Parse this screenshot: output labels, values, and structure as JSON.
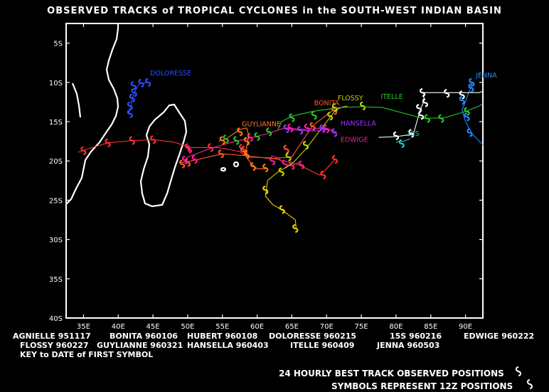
{
  "title": "OBSERVED TRACKS of TROPICAL CYCLONES in the SOUTH-WEST INDIAN BASIN",
  "legend": [
    {
      "name": "AGNIELLE",
      "date": "951117"
    },
    {
      "name": "BONITA",
      "date": "960106"
    },
    {
      "name": "HUBERT",
      "date": "960108"
    },
    {
      "name": "DOLORESSE",
      "date": "960215"
    },
    {
      "name": "15S",
      "date": "960216"
    },
    {
      "name": "EDWIGE",
      "date": "960222"
    },
    {
      "name": "FLOSSY",
      "date": "960227"
    },
    {
      "name": "GUYLIANNE",
      "date": "960321"
    },
    {
      "name": "HANSELLA",
      "date": "960403"
    },
    {
      "name": "ITELLE",
      "date": "960409"
    },
    {
      "name": "JENNA",
      "date": "960503"
    }
  ],
  "key_text": "KEY to DATE of FIRST SYMBOL",
  "footer": {
    "line1": "24 HOURLY BEST TRACK OBSERVED POSITIONS",
    "line2": "SYMBOLS REPRESENT 12Z POSITIONS",
    "symbol": "cyclone-icon"
  },
  "colors": {
    "background": "#000000",
    "frame": "#ffffff",
    "land": "#ffffff"
  },
  "chart_data": {
    "type": "map-tracks",
    "xlabel": "",
    "ylabel": "",
    "xlim": [
      32.5,
      92.5
    ],
    "ylim": [
      -40,
      -2.5
    ],
    "xticks": [
      {
        "value": 35,
        "label": "35E"
      },
      {
        "value": 40,
        "label": "40E"
      },
      {
        "value": 45,
        "label": "45E"
      },
      {
        "value": 50,
        "label": "50E"
      },
      {
        "value": 55,
        "label": "55E"
      },
      {
        "value": 60,
        "label": "60E"
      },
      {
        "value": 65,
        "label": "65E"
      },
      {
        "value": 70,
        "label": "70E"
      },
      {
        "value": 75,
        "label": "75E"
      },
      {
        "value": 80,
        "label": "80E"
      },
      {
        "value": 85,
        "label": "85E"
      },
      {
        "value": 90,
        "label": "90E"
      }
    ],
    "yticks": [
      {
        "value": -5,
        "label": "5S"
      },
      {
        "value": -10,
        "label": "10S"
      },
      {
        "value": -15,
        "label": "15S"
      },
      {
        "value": -20,
        "label": "20S"
      },
      {
        "value": -25,
        "label": "25S"
      },
      {
        "value": -30,
        "label": "30S"
      },
      {
        "value": -35,
        "label": "35S"
      },
      {
        "value": -40,
        "label": "40S"
      }
    ],
    "series": [
      {
        "name": "AGNIELLE",
        "color": "#ff3030",
        "points": [
          [
            34.2,
            -18.9
          ],
          [
            35.5,
            -18.5
          ],
          [
            38.5,
            -17.7
          ],
          [
            42,
            -17.4
          ],
          [
            45.2,
            -17.3
          ],
          [
            48,
            -17.6
          ],
          [
            50.5,
            -18.3
          ],
          [
            54.5,
            -18.3
          ],
          [
            57.5,
            -18.8
          ],
          [
            58.5,
            -19.5
          ],
          [
            62,
            -19.6
          ],
          [
            66,
            -20.5
          ],
          [
            69,
            -21.8
          ],
          [
            70,
            -21
          ],
          [
            71.2,
            -19.8
          ]
        ],
        "markers": [
          [
            35,
            -18.7
          ],
          [
            38.5,
            -17.7
          ],
          [
            42,
            -17.4
          ],
          [
            45,
            -17.3
          ],
          [
            50,
            -18.3
          ],
          [
            53.3,
            -18.3
          ],
          [
            57.8,
            -18.4
          ],
          [
            58.2,
            -18.6
          ],
          [
            69.5,
            -21.8
          ],
          [
            71.2,
            -19.8
          ]
        ]
      },
      {
        "name": "BONITA",
        "color": "#ff5a28",
        "points": [
          [
            49,
            -20.2
          ],
          [
            50,
            -20.1
          ],
          [
            55,
            -19.1
          ],
          [
            58,
            -19.3
          ],
          [
            62,
            -19.7
          ],
          [
            65,
            -19.5
          ],
          [
            68,
            -15.5
          ],
          [
            71,
            -13.5
          ],
          [
            72,
            -13.3
          ]
        ],
        "markers": [
          [
            49.2,
            -20.4
          ],
          [
            50,
            -20.2
          ],
          [
            54.8,
            -19.1
          ],
          [
            58,
            -18.8
          ],
          [
            64.2,
            -18.5
          ],
          [
            68,
            -15.6
          ],
          [
            71.1,
            -13.6
          ]
        ]
      },
      {
        "name": "HUBERT",
        "color": "#ff1e96",
        "points": [
          [
            49.5,
            -20
          ],
          [
            50,
            -19.5
          ],
          [
            53,
            -18.5
          ],
          [
            56,
            -17.7
          ],
          [
            58.5,
            -17.2
          ],
          [
            61.5,
            -16.5
          ],
          [
            64,
            -15.8
          ],
          [
            67,
            -16
          ],
          [
            69.5,
            -15.8
          ],
          [
            71.5,
            -16.3
          ]
        ],
        "markers": [
          [
            49.6,
            -19.9
          ],
          [
            50.2,
            -18.5
          ],
          [
            51,
            -19.8
          ],
          [
            59,
            -17
          ],
          [
            64.8,
            -15.8
          ],
          [
            67.2,
            -15.8
          ],
          [
            70,
            -15.9
          ]
        ]
      },
      {
        "name": "DOLORESSE",
        "color": "#2850ff",
        "points": [
          [
            41.5,
            -14
          ],
          [
            41.8,
            -13
          ],
          [
            42,
            -12
          ],
          [
            42.5,
            -11
          ],
          [
            43,
            -10.2
          ],
          [
            44.2,
            -10
          ]
        ],
        "markers": [
          [
            41.7,
            -14
          ],
          [
            41.7,
            -13
          ],
          [
            42,
            -12
          ],
          [
            42.3,
            -11.3
          ],
          [
            42.2,
            -10.4
          ],
          [
            43.3,
            -10.1
          ],
          [
            44.3,
            -10
          ]
        ]
      },
      {
        "name": "15S",
        "color": "#22c8c8",
        "points": [
          [
            80,
            -17.6
          ],
          [
            81,
            -17.5
          ],
          [
            82,
            -17.2
          ]
        ],
        "markers": [
          [
            80.8,
            -17.8
          ]
        ]
      },
      {
        "name": "EDWIGE",
        "color": "#e6288c",
        "points": [
          [
            62,
            -19.3
          ],
          [
            63,
            -19.6
          ],
          [
            64,
            -20.4
          ],
          [
            65,
            -20.6
          ],
          [
            66,
            -20.2
          ]
        ],
        "markers": [
          [
            62.2,
            -20
          ],
          [
            64,
            -20.4
          ],
          [
            65,
            -20.6
          ],
          [
            66.4,
            -20.5
          ]
        ]
      },
      {
        "name": "FLOSSY",
        "color": "#c8d200",
        "points": [
          [
            61.5,
            -22.5
          ],
          [
            63,
            -21.4
          ],
          [
            65,
            -20.4
          ],
          [
            67,
            -18.5
          ],
          [
            69.5,
            -15.6
          ],
          [
            71.5,
            -13.3
          ],
          [
            73,
            -13
          ]
        ],
        "markers": [
          [
            63.5,
            -21.4
          ],
          [
            64.5,
            -19.5
          ],
          [
            67,
            -18
          ],
          [
            70.5,
            -14.3
          ],
          [
            71.2,
            -13.2
          ],
          [
            75.2,
            -13
          ]
        ]
      },
      {
        "name": "GUYLIANNE",
        "color": "#ff7820",
        "points": [
          [
            54.5,
            -17.5
          ],
          [
            55.5,
            -17.2
          ],
          [
            57.5,
            -16
          ],
          [
            58.5,
            -15.8
          ],
          [
            58.8,
            -16.8
          ],
          [
            58.5,
            -18.2
          ],
          [
            58.5,
            -19.5
          ],
          [
            59,
            -20.2
          ],
          [
            60,
            -21
          ],
          [
            61.5,
            -21
          ]
        ],
        "markers": [
          [
            55,
            -17.4
          ],
          [
            57.5,
            -16.3
          ],
          [
            58.5,
            -17.5
          ],
          [
            58.5,
            -19.2
          ],
          [
            59.4,
            -20.7
          ],
          [
            61.2,
            -20.9
          ]
        ]
      },
      {
        "name": "HANSELLA",
        "color": "#a032ff",
        "points": [
          [
            64,
            -15.9
          ],
          [
            66,
            -16.1
          ],
          [
            68.5,
            -16.2
          ],
          [
            70.5,
            -16
          ]
        ],
        "markers": [
          [
            64.2,
            -15.9
          ],
          [
            66.2,
            -16.1
          ],
          [
            69.4,
            -15.9
          ],
          [
            71.1,
            -16.4
          ]
        ]
      },
      {
        "name": "ITELLE",
        "color": "#28c828",
        "points": [
          [
            63,
            -16
          ],
          [
            63.5,
            -15
          ],
          [
            65,
            -14.3
          ],
          [
            68,
            -13.7
          ],
          [
            72,
            -13.2
          ],
          [
            75,
            -13.1
          ],
          [
            78,
            -13.2
          ],
          [
            84,
            -14.6
          ],
          [
            87,
            -14.5
          ],
          [
            90,
            -13.7
          ],
          [
            92,
            -13
          ],
          [
            94,
            -11.8
          ]
        ],
        "markers": [
          [
            55.5,
            -17.2
          ],
          [
            57,
            -17.4
          ],
          [
            60,
            -16.9
          ],
          [
            61.7,
            -16.3
          ],
          [
            65,
            -14.5
          ],
          [
            68.2,
            -14.2
          ],
          [
            84.5,
            -14.6
          ],
          [
            86.5,
            -14.6
          ],
          [
            90.2,
            -13.7
          ]
        ]
      },
      {
        "name": "JENNA",
        "color": "#1e8cff",
        "points": [
          [
            91,
            -10
          ],
          [
            90.6,
            -11
          ],
          [
            90,
            -12.4
          ],
          [
            89.5,
            -13.5
          ],
          [
            90,
            -15
          ],
          [
            91,
            -16.6
          ],
          [
            93,
            -18.4
          ],
          [
            96,
            -20.8
          ]
        ],
        "markers": [
          [
            90.9,
            -10
          ],
          [
            90.8,
            -10.7
          ],
          [
            89.5,
            -12.3
          ],
          [
            90.2,
            -14.4
          ],
          [
            90.6,
            -16.4
          ]
        ]
      },
      {
        "name": "",
        "color": "#ffffff",
        "points": [
          [
            77.5,
            -17
          ],
          [
            80,
            -16.9
          ],
          [
            82.5,
            -16.6
          ],
          [
            83,
            -15
          ],
          [
            83.5,
            -13.5
          ],
          [
            84,
            -12.4
          ],
          [
            84,
            -11.3
          ],
          [
            86,
            -11.3
          ],
          [
            89,
            -11.3
          ],
          [
            92,
            -11.3
          ],
          [
            94,
            -10.5
          ]
        ],
        "markers": [
          [
            80,
            -16.8
          ],
          [
            82.2,
            -16.5
          ],
          [
            83.6,
            -14.2
          ],
          [
            83.3,
            -13.3
          ],
          [
            84.2,
            -12.6
          ],
          [
            83.8,
            -11.3
          ],
          [
            87.3,
            -11.4
          ],
          [
            89.5,
            -11.6
          ]
        ]
      },
      {
        "name": "",
        "color": "#f0d000",
        "points": [
          [
            61.5,
            -22.5
          ],
          [
            61.2,
            -24.5
          ],
          [
            62.3,
            -25.6
          ],
          [
            63.5,
            -26.2
          ],
          [
            65.5,
            -27.5
          ],
          [
            65.6,
            -28.5
          ]
        ],
        "markers": [
          [
            61.2,
            -23.7
          ],
          [
            63.6,
            -26.2
          ],
          [
            65.5,
            -28.6
          ]
        ]
      }
    ],
    "labels": [
      {
        "text": "DOLORESSE",
        "lon": 44.6,
        "lat": -9.1,
        "color": "#2850ff"
      },
      {
        "text": "BONITA",
        "lon": 68.2,
        "lat": -12.9,
        "color": "#ff5a28"
      },
      {
        "text": "FLOSSY",
        "lon": 71.6,
        "lat": -12.3,
        "color": "#c8d200"
      },
      {
        "text": "ITELLE",
        "lon": 77.8,
        "lat": -12.1,
        "color": "#28c828"
      },
      {
        "text": "JENNA",
        "lon": 91.5,
        "lat": -9.4,
        "color": "#1e8cff"
      },
      {
        "text": "GUYLIANNE",
        "lon": 57.8,
        "lat": -15.6,
        "color": "#ff7820"
      },
      {
        "text": "HANSELLA",
        "lon": 72,
        "lat": -15.5,
        "color": "#a032ff"
      },
      {
        "text": "EDWIGE",
        "lon": 72,
        "lat": -17.6,
        "color": "#e6288c"
      },
      {
        "text": "15S",
        "lon": 81.5,
        "lat": -16.8,
        "color": "#22c8c8"
      }
    ]
  }
}
